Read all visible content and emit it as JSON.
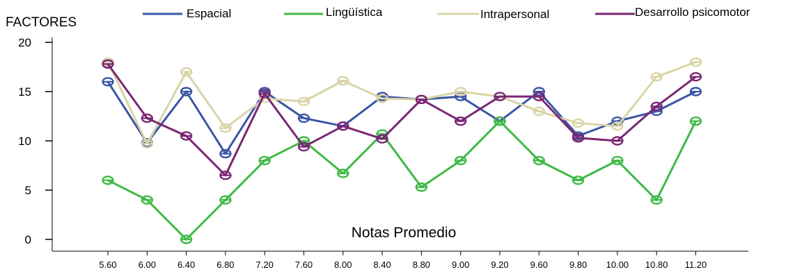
{
  "chart_data": {
    "type": "line",
    "ylabel": "FACTORES",
    "xlabel": "Notas Promedio",
    "categories": [
      "5.60",
      "6.00",
      "6.40",
      "6.80",
      "7.20",
      "7.60",
      "8.00",
      "8.40",
      "8.80",
      "9.00",
      "9.20",
      "9.60",
      "9.80",
      "10.00",
      "10.80",
      "11.20"
    ],
    "yticks": [
      0,
      5,
      10,
      15,
      20
    ],
    "ylim": [
      -0.5,
      20.5
    ],
    "grid": false,
    "legend_position": "top",
    "series": [
      {
        "name": "Espacial",
        "color": "#3a55a6",
        "values": [
          16,
          9.8,
          15,
          8.7,
          15,
          12.3,
          11.5,
          14.5,
          14.2,
          14.5,
          12,
          15,
          10.5,
          12,
          13,
          15
        ]
      },
      {
        "name": "Lingüística",
        "color": "#3dba45",
        "values": [
          6,
          4,
          0,
          4,
          8,
          10,
          6.7,
          10.7,
          5.3,
          8,
          12,
          8,
          6,
          8,
          4,
          12
        ]
      },
      {
        "name": "Intrapersonal",
        "color": "#d9d4a6",
        "values": [
          18,
          9.7,
          17,
          11.3,
          14.3,
          14,
          16.1,
          14.3,
          14.2,
          15,
          14.5,
          13,
          11.8,
          11.5,
          16.5,
          18
        ]
      },
      {
        "name": "Desarrollo psicomotor",
        "color": "#7a2673",
        "values": [
          17.8,
          12.3,
          10.5,
          6.5,
          14.8,
          9.4,
          11.5,
          10.2,
          14.2,
          12,
          14.5,
          14.5,
          10.3,
          10,
          13.5,
          16.5
        ]
      }
    ]
  }
}
